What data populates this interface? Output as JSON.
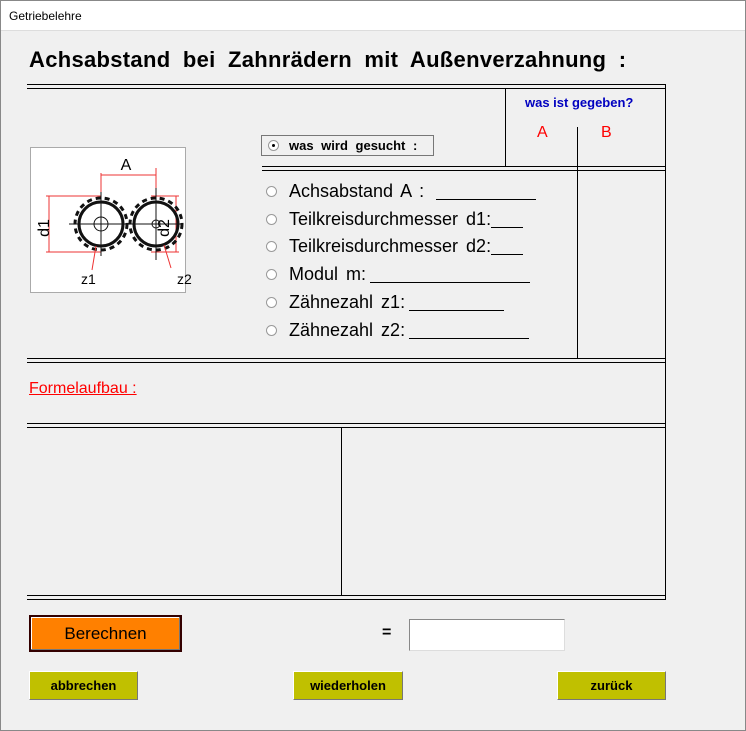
{
  "window": {
    "title": "Getriebelehre"
  },
  "heading": "Achsabstand bei Zahnrädern mit Außenverzahnung :",
  "given": {
    "label": "was ist gegeben?",
    "col_a": "A",
    "col_b": "B"
  },
  "sought": {
    "label": "was wird gesucht :",
    "selected": true
  },
  "figure": {
    "label_a": "A",
    "label_d1": "d1",
    "label_d2": "d2",
    "label_z1": "z1",
    "label_z2": "z2"
  },
  "options": [
    {
      "label": "Achsabstand  A :"
    },
    {
      "label": "Teilkreisdurchmesser  d1:"
    },
    {
      "label": "Teilkreisdurchmesser  d2:"
    },
    {
      "label": "Modul  m:"
    },
    {
      "label": "Zähnezahl  z1:"
    },
    {
      "label": "Zähnezahl  z2:"
    }
  ],
  "formula": {
    "label": "Formelaufbau :"
  },
  "calc": {
    "button": "Berechnen",
    "equals": "=",
    "result": ""
  },
  "buttons": {
    "cancel": "abbrechen",
    "repeat": "wiederholen",
    "back": "zurück"
  },
  "colors": {
    "calc_button": "#ff8000",
    "nav_button": "#c0c000",
    "given_label": "#0000c0",
    "col_labels": "#ff0000",
    "formula_label": "#ff0000"
  }
}
